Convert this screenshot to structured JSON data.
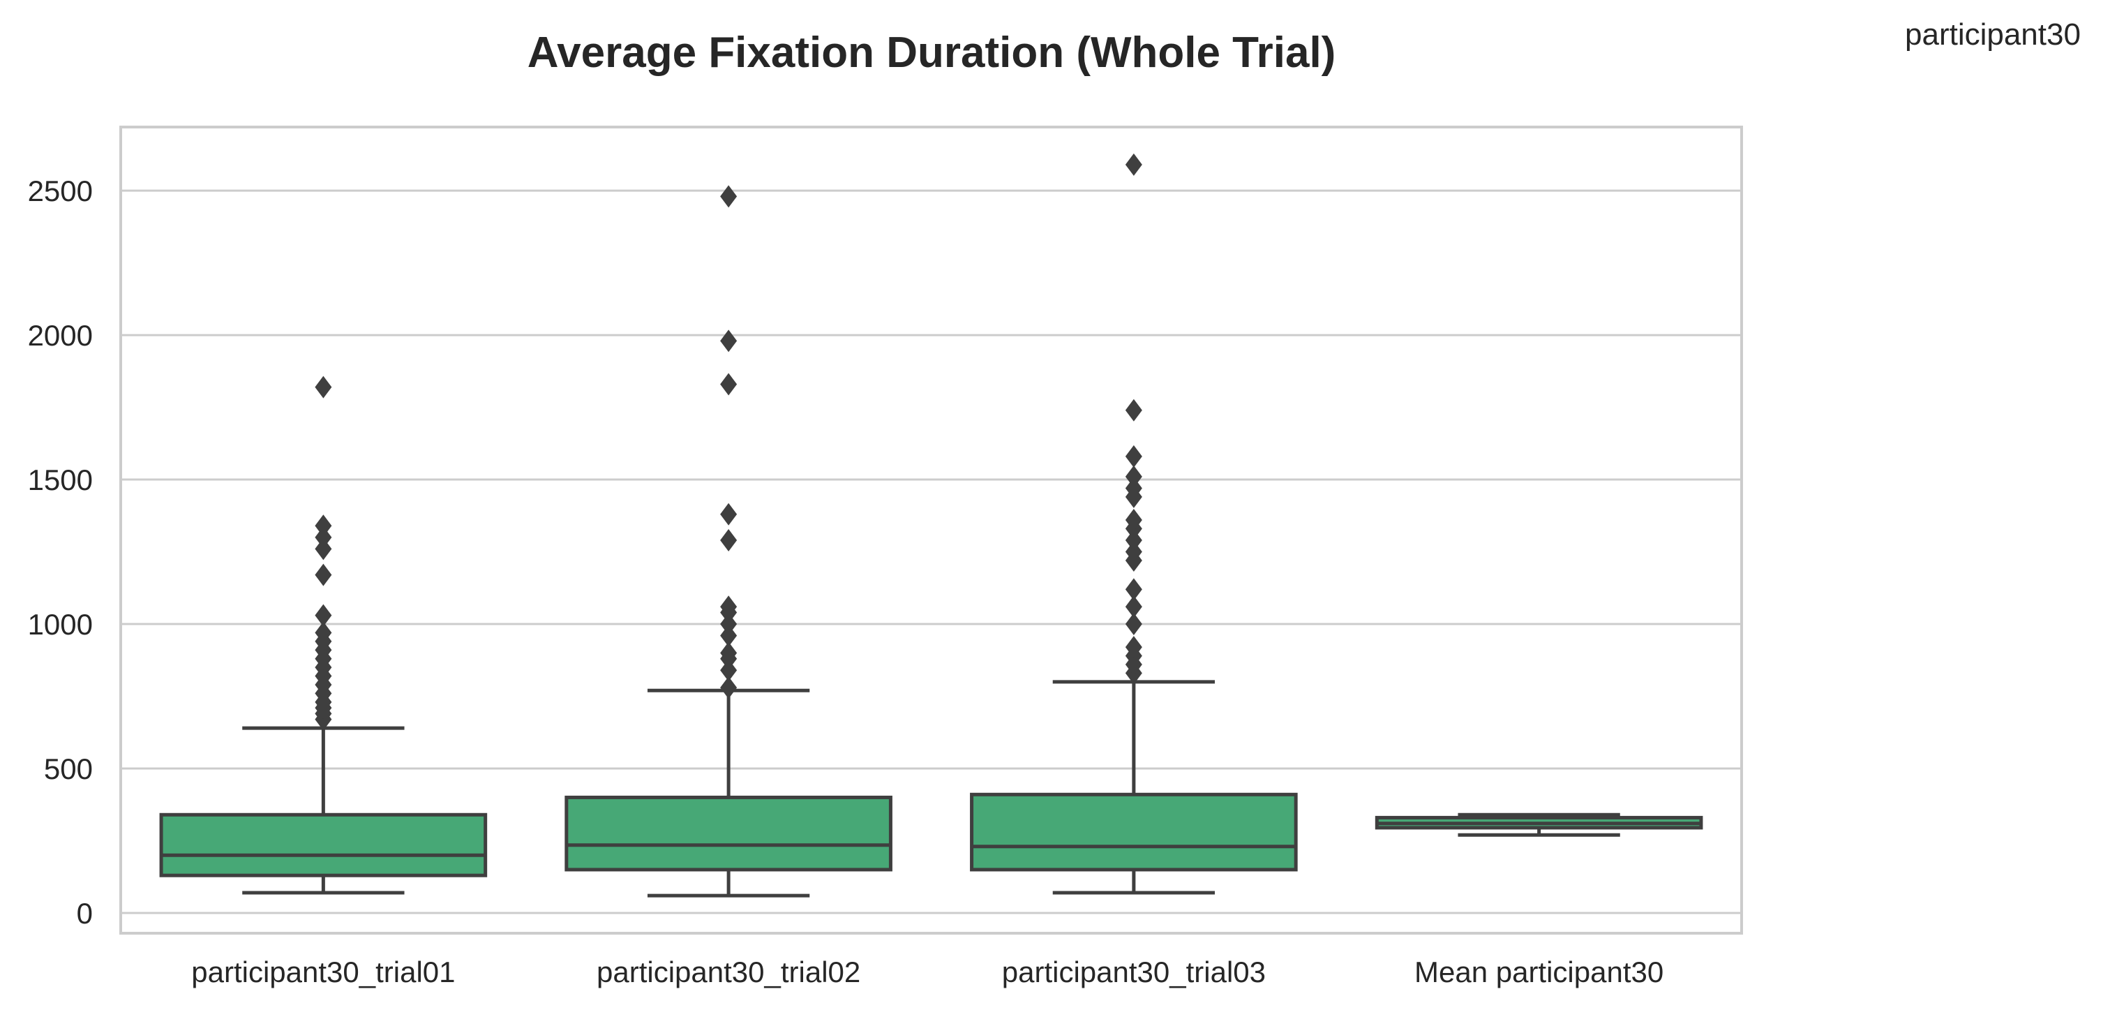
{
  "chart_data": {
    "type": "box",
    "title": "Average Fixation Duration (Whole Trial)",
    "corner_label": "participant30",
    "xlabel": "",
    "ylabel": "",
    "ylim": [
      -70,
      2720
    ],
    "yticks": [
      0,
      500,
      1000,
      1500,
      2000,
      2500
    ],
    "grid": "horizontal",
    "box_color": "#47a876",
    "line_color": "#3f3f3f",
    "categories": [
      "participant30_trial01",
      "participant30_trial02",
      "participant30_trial03",
      "Mean participant30"
    ],
    "boxes": [
      {
        "category": "participant30_trial01",
        "whisker_low": 70,
        "q1": 130,
        "median": 200,
        "q3": 340,
        "whisker_high": 640,
        "outliers": [
          670,
          690,
          710,
          730,
          760,
          790,
          820,
          850,
          880,
          910,
          940,
          970,
          1030,
          1170,
          1260,
          1300,
          1340,
          1820
        ]
      },
      {
        "category": "participant30_trial02",
        "whisker_low": 60,
        "q1": 150,
        "median": 235,
        "q3": 400,
        "whisker_high": 770,
        "outliers": [
          780,
          840,
          880,
          900,
          960,
          1000,
          1040,
          1060,
          1290,
          1380,
          1830,
          1980,
          2480
        ]
      },
      {
        "category": "participant30_trial03",
        "whisker_low": 70,
        "q1": 150,
        "median": 230,
        "q3": 410,
        "whisker_high": 800,
        "outliers": [
          830,
          860,
          890,
          920,
          1000,
          1060,
          1120,
          1220,
          1250,
          1290,
          1330,
          1360,
          1440,
          1470,
          1510,
          1580,
          1740,
          2590
        ]
      },
      {
        "category": "Mean participant30",
        "whisker_low": 270,
        "q1": 295,
        "median": 310,
        "q3": 330,
        "whisker_high": 340,
        "outliers": []
      }
    ]
  }
}
